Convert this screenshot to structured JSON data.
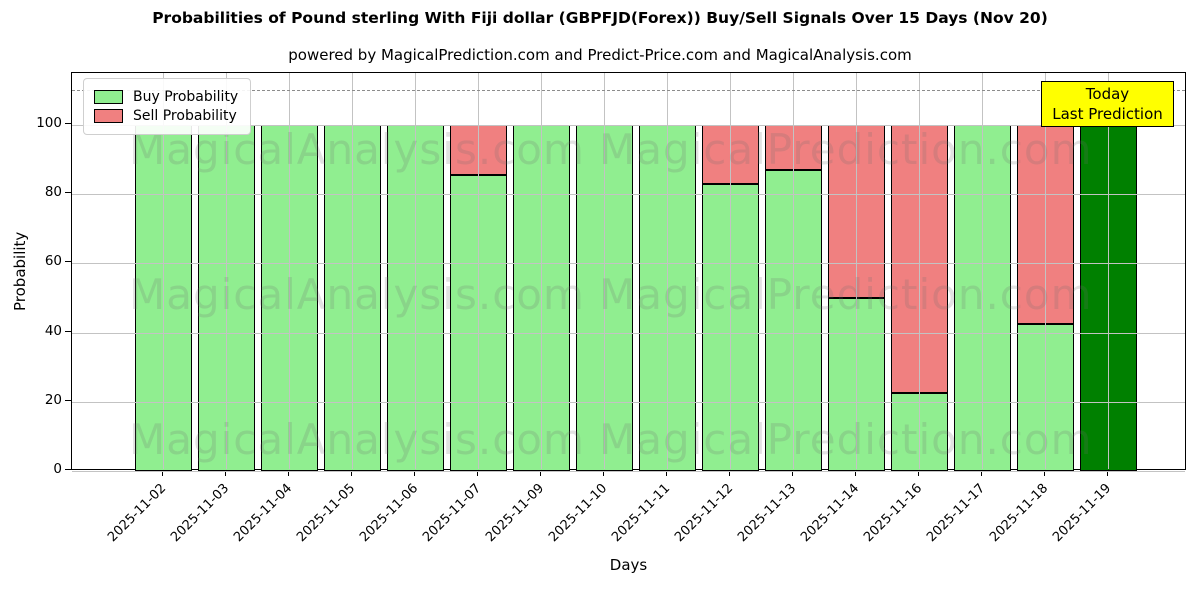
{
  "watermarks": {
    "left": "MagicalAnalysis.com",
    "right": "MagicalPrediction.com"
  },
  "chart_data": {
    "type": "bar",
    "stacked": true,
    "title": "Probabilities of Pound sterling With Fiji dollar (GBPFJD(Forex)) Buy/Sell Signals Over 15 Days (Nov 20)",
    "subtitle": "powered by MagicalPrediction.com and Predict-Price.com and MagicalAnalysis.com",
    "xlabel": "Days",
    "ylabel": "Probability",
    "ylim": [
      0,
      115
    ],
    "yticks": [
      0,
      20,
      40,
      60,
      80,
      100
    ],
    "threshold_line": 110,
    "grid": true,
    "legend_position": "upper-left",
    "categories": [
      "2025-11-02",
      "2025-11-03",
      "2025-11-04",
      "2025-11-05",
      "2025-11-06",
      "2025-11-07",
      "2025-11-09",
      "2025-11-10",
      "2025-11-11",
      "2025-11-12",
      "2025-11-13",
      "2025-11-14",
      "2025-11-16",
      "2025-11-17",
      "2025-11-18",
      "2025-11-19"
    ],
    "series": [
      {
        "name": "Buy Probability",
        "color": "#90EE90",
        "values": [
          100,
          100,
          100,
          100,
          100,
          85.5,
          100,
          100,
          100,
          83,
          87,
          50,
          22.5,
          100,
          42.5,
          100
        ]
      },
      {
        "name": "Sell Probability",
        "color": "#F08080",
        "values": [
          0,
          0,
          0,
          0,
          0,
          14.5,
          0,
          0,
          0,
          17,
          13,
          50,
          77.5,
          0,
          57.5,
          0
        ]
      }
    ],
    "today_category": "2025-11-19",
    "today_color": "#008000",
    "annotation": {
      "lines": [
        "Today",
        "Last Prediction"
      ],
      "bg": "#FFFF00"
    },
    "colors": {
      "bar_edge": "#000000",
      "grid": "#c3c3c3",
      "threshold": "#8c8c8c"
    }
  }
}
